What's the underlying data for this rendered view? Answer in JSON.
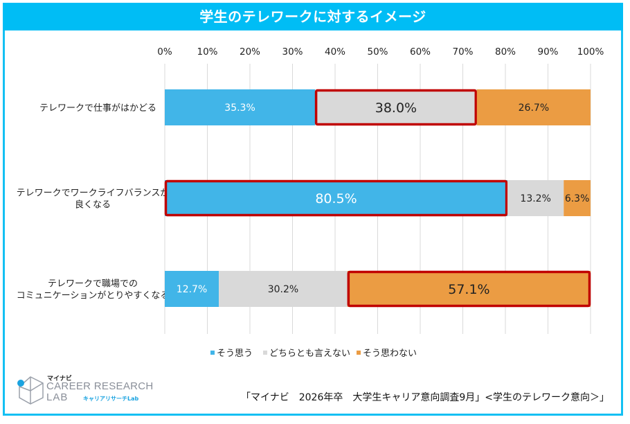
{
  "title": "学生のテレワークに対するイメージ",
  "chart_data": {
    "type": "bar",
    "orientation": "horizontal",
    "stacked": "percent",
    "title": "学生のテレワークに対するイメージ",
    "categories": [
      [
        "テレワークで仕事がはかどる"
      ],
      [
        "テレワークでワークライフバランスが",
        "良くなる"
      ],
      [
        "テレワークで職場での",
        "コミュニケーションがとりやすくなる"
      ]
    ],
    "series": [
      {
        "name": "そう思う",
        "color": "#41b5e8",
        "label_color": "#ffffff",
        "values": [
          35.3,
          80.5,
          12.7
        ]
      },
      {
        "name": "どちらとも言えない",
        "color": "#d9d9d9",
        "label_color": "#222222",
        "values": [
          38.0,
          13.2,
          30.2
        ]
      },
      {
        "name": "そう思わない",
        "color": "#eb9c43",
        "label_color": "#222222",
        "values": [
          26.7,
          6.3,
          57.1
        ]
      }
    ],
    "highlighted": [
      {
        "category_index": 0,
        "series_index": 1
      },
      {
        "category_index": 1,
        "series_index": 0
      },
      {
        "category_index": 2,
        "series_index": 2
      }
    ],
    "highlight_color": "#c00000",
    "xlim": [
      0,
      100
    ],
    "xticks": [
      "0%",
      "10%",
      "20%",
      "30%",
      "40%",
      "50%",
      "60%",
      "70%",
      "80%",
      "90%",
      "100%"
    ],
    "xaxis_position": "top",
    "grid": true,
    "legend_position": "bottom",
    "xlabel": "",
    "ylabel": ""
  },
  "legend": [
    "そう思う",
    "どちらとも言えない",
    "そう思わない"
  ],
  "logo": {
    "small": "マイナビ",
    "line1": "CAREER RESEARCH",
    "line2": "LAB",
    "kana": "キャリアリサーチLab"
  },
  "source": "「マイナビ　2026年卒　大学生キャリア意向調査9月」<学生のテレワーク意向＞」"
}
